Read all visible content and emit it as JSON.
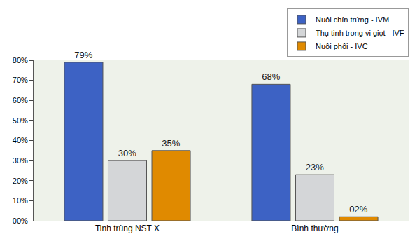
{
  "chart_data": {
    "type": "bar",
    "categories": [
      "Tinh trùng NST X",
      "Bình thường"
    ],
    "series": [
      {
        "name": "Nuôi chín trứng - IVM",
        "color": "#3d62c4",
        "values": [
          79,
          68
        ],
        "value_labels": [
          "79%",
          "68%"
        ]
      },
      {
        "name": "Thụ tinh trong vi giọt - IVF",
        "color": "#d4d6d8",
        "values": [
          30,
          23
        ],
        "value_labels": [
          "30%",
          "23%"
        ]
      },
      {
        "name": "Nuôi phôi - IVC",
        "color": "#e08a00",
        "values": [
          35,
          2
        ],
        "value_labels": [
          "35%",
          "02%"
        ]
      }
    ],
    "ylim": [
      0,
      80
    ],
    "yticks": [
      {
        "value": 0,
        "label": "00%"
      },
      {
        "value": 10,
        "label": "10%"
      },
      {
        "value": 20,
        "label": "20%"
      },
      {
        "value": 30,
        "label": "30%"
      },
      {
        "value": 40,
        "label": "40%"
      },
      {
        "value": 50,
        "label": "50%"
      },
      {
        "value": 60,
        "label": "60%"
      },
      {
        "value": 70,
        "label": "70%"
      },
      {
        "value": 80,
        "label": "80%"
      }
    ],
    "grid": false,
    "legend": "top right",
    "data_labels": true
  }
}
